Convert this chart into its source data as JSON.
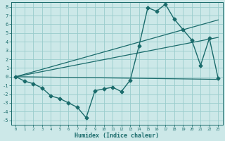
{
  "xlabel": "Humidex (Indice chaleur)",
  "background_color": "#cce8e8",
  "grid_color": "#99cccc",
  "line_color": "#1a6b6b",
  "xlim": [
    -0.5,
    23.5
  ],
  "ylim": [
    -5.5,
    8.5
  ],
  "xticks": [
    0,
    1,
    2,
    3,
    4,
    5,
    6,
    7,
    8,
    9,
    10,
    11,
    12,
    13,
    14,
    15,
    16,
    17,
    18,
    19,
    20,
    21,
    22,
    23
  ],
  "yticks": [
    -5,
    -4,
    -3,
    -2,
    -1,
    0,
    1,
    2,
    3,
    4,
    5,
    6,
    7,
    8
  ],
  "series": [
    {
      "x": [
        0,
        1,
        2,
        3,
        4,
        5,
        6,
        7,
        8,
        9,
        10,
        11,
        12,
        13,
        14,
        15,
        16,
        17,
        18,
        19,
        20,
        21,
        22,
        23
      ],
      "y": [
        0,
        -0.5,
        -0.8,
        -1.3,
        -2.2,
        -2.5,
        -3.0,
        -3.5,
        -4.7,
        -1.6,
        -1.4,
        -1.2,
        -1.7,
        -0.4,
        3.5,
        7.9,
        7.5,
        8.3,
        6.6,
        5.4,
        4.2,
        1.3,
        4.4,
        -0.2
      ],
      "marker": "D",
      "markersize": 2.5,
      "linewidth": 1.0
    },
    {
      "x": [
        0,
        23
      ],
      "y": [
        0,
        6.5
      ],
      "marker": false,
      "linewidth": 0.9
    },
    {
      "x": [
        0,
        23
      ],
      "y": [
        0,
        4.5
      ],
      "marker": false,
      "linewidth": 0.9
    },
    {
      "x": [
        0,
        23
      ],
      "y": [
        0,
        -0.3
      ],
      "marker": false,
      "linewidth": 0.9
    }
  ]
}
